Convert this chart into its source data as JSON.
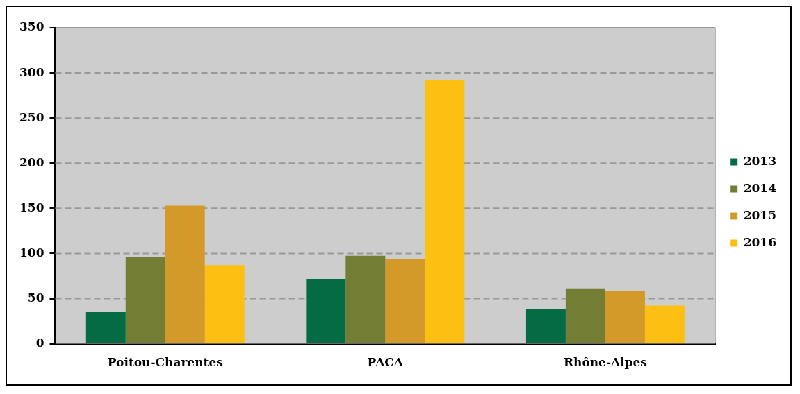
{
  "chart_data": {
    "type": "bar",
    "categories": [
      "Poitou-Charentes",
      "PACA",
      "Rhône-Alpes"
    ],
    "series": [
      {
        "name": "2013",
        "color": "#056b44",
        "values": [
          35,
          72,
          38.6
        ]
      },
      {
        "name": "2014",
        "color": "#737d34",
        "values": [
          96,
          97.5,
          61.4
        ]
      },
      {
        "name": "2015",
        "color": "#d39a29",
        "values": [
          153,
          94,
          58.4
        ]
      },
      {
        "name": "2016",
        "color": "#fcbf12",
        "values": [
          87,
          292,
          42.4
        ]
      }
    ],
    "ylim": [
      0,
      350
    ],
    "yticks": [
      0,
      50,
      100,
      150,
      200,
      250,
      300,
      350
    ],
    "grid": "y",
    "legend": "right"
  }
}
